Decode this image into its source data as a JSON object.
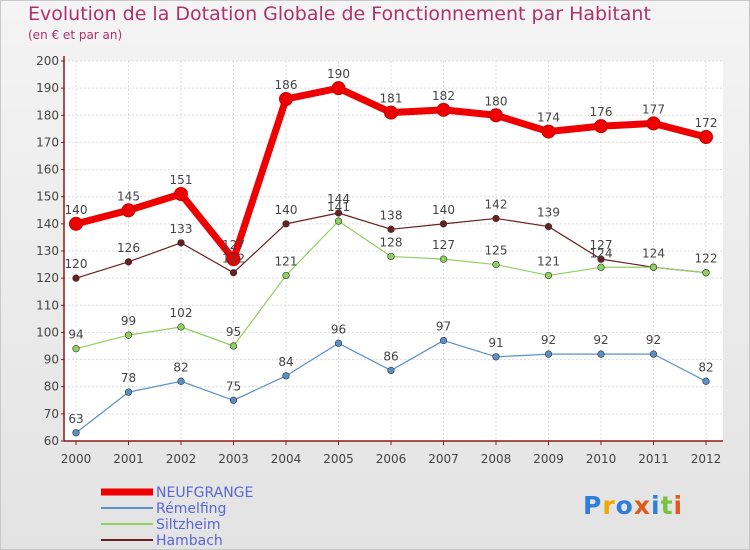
{
  "title": "Evolution de la Dotation Globale de Fonctionnement par Habitant",
  "subtitle": "(en € et par an)",
  "logo": "Proxiti",
  "colors": {
    "title": "#b0316a",
    "axis": "#8b1a1a",
    "label": "#444444",
    "legend_text": "#5a66d6"
  },
  "chart_data": {
    "type": "line",
    "title": "Evolution de la Dotation Globale de Fonctionnement par Habitant",
    "subtitle": "(en € et par an)",
    "xlabel": "",
    "ylabel": "",
    "x": [
      "2000",
      "2001",
      "2002",
      "2003",
      "2004",
      "2005",
      "2006",
      "2007",
      "2008",
      "2009",
      "2010",
      "2011",
      "2012"
    ],
    "ylim": [
      60,
      200
    ],
    "yticks": [
      60,
      70,
      80,
      90,
      100,
      110,
      120,
      130,
      140,
      150,
      160,
      170,
      180,
      190,
      200
    ],
    "grid": true,
    "legend_position": "bottom-left",
    "series": [
      {
        "name": "NEUFGRANGE",
        "color": "#ee0000",
        "values": [
          140,
          145,
          151,
          127,
          186,
          190,
          181,
          182,
          180,
          174,
          176,
          177,
          172
        ]
      },
      {
        "name": "Rémelfing",
        "color": "#5b8fc9",
        "values": [
          63,
          78,
          82,
          75,
          84,
          96,
          86,
          97,
          91,
          92,
          92,
          92,
          82
        ]
      },
      {
        "name": "Siltzheim",
        "color": "#8fd15f",
        "values": [
          94,
          99,
          102,
          95,
          121,
          141,
          128,
          127,
          125,
          121,
          124,
          124,
          122
        ]
      },
      {
        "name": "Hambach",
        "color": "#6b1f1f",
        "values": [
          120,
          126,
          133,
          122,
          140,
          144,
          138,
          140,
          142,
          139,
          127,
          124,
          122
        ]
      }
    ],
    "data_labels": [
      {
        "series": "NEUFGRANGE",
        "labels": [
          "140",
          "145",
          "151",
          "127",
          "186",
          "190",
          "181",
          "182",
          "180",
          "174",
          "176",
          "177",
          "172"
        ]
      },
      {
        "series": "Rémelfing",
        "labels": [
          "63",
          "78",
          "82",
          "75",
          "84",
          "96",
          "86",
          "97",
          "91",
          "92",
          "92",
          "92",
          "82"
        ]
      },
      {
        "series": "Siltzheim",
        "labels": [
          "94",
          "99",
          "102",
          "95",
          "121",
          "141",
          "128",
          "127",
          "125",
          "121",
          "124",
          "",
          ""
        ]
      },
      {
        "series": "Hambach",
        "labels": [
          "120",
          "126",
          "133",
          "122",
          "140",
          "144",
          "138",
          "140",
          "142",
          "139",
          "127",
          "124",
          "122"
        ]
      }
    ]
  }
}
